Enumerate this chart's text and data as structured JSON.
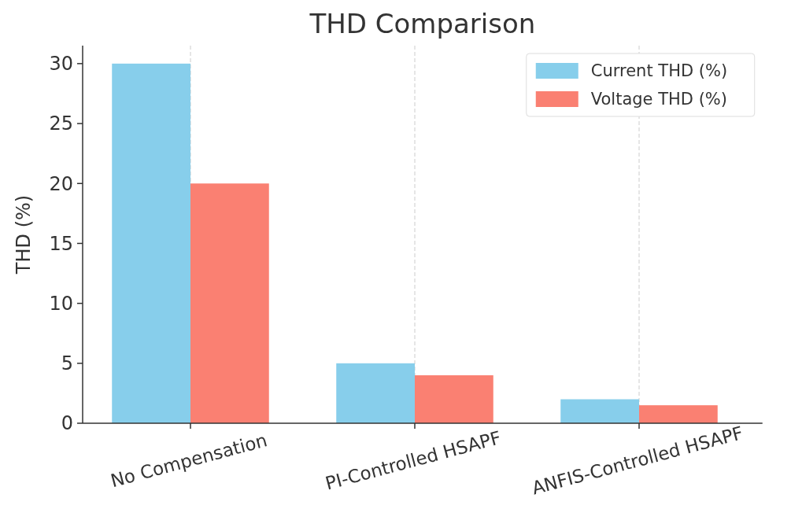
{
  "chart_data": {
    "type": "bar",
    "title": "THD Comparison",
    "ylabel": "THD (%)",
    "categories": [
      "No Compensation",
      "PI-Controlled HSAPF",
      "ANFIS-Controlled HSAPF"
    ],
    "series": [
      {
        "name": "Current THD (%)",
        "color": "#87ceeb",
        "values": [
          30,
          5,
          2
        ]
      },
      {
        "name": "Voltage THD (%)",
        "color": "#fa8072",
        "values": [
          20,
          4,
          1.5
        ]
      }
    ],
    "ylim": [
      0,
      31.5
    ],
    "yticks": [
      0,
      5,
      10,
      15,
      20,
      25,
      30
    ],
    "grid": "x",
    "legend": "top right"
  }
}
